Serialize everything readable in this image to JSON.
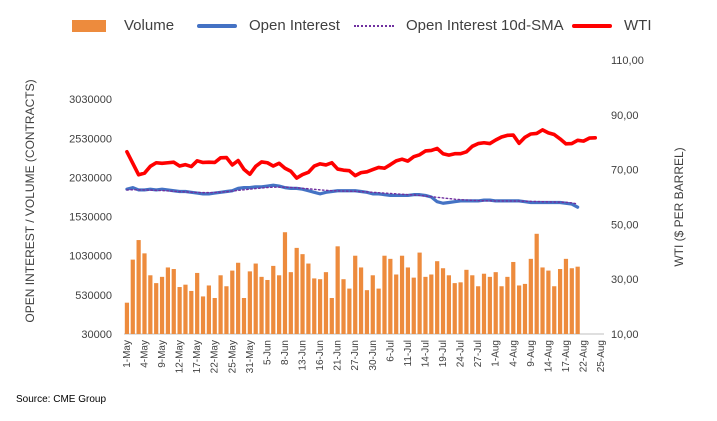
{
  "colors": {
    "volume": "#ED8B3D",
    "open_interest": "#4472C4",
    "sma": "#7030A0",
    "wti": "#FF0000",
    "axis_text": "#404040"
  },
  "legend": {
    "volume": "Volume",
    "open_interest": "Open Interest",
    "sma": "Open Interest 10d-SMA",
    "wti": "WTI"
  },
  "source": "Source: CME Group",
  "chart_data": {
    "type": "bar",
    "title": "",
    "ylabel_left": "OPEN INTEREST / VOLUME (CONTRACTS)",
    "ylabel_right": "WTI ($ PER BARREL)",
    "ylim_left": [
      30000,
      3530000
    ],
    "ylim_right": [
      10,
      110
    ],
    "left_ticks": [
      "30000",
      "530000",
      "1030000",
      "1530000",
      "2030000",
      "2530000",
      "3030000"
    ],
    "right_ticks": [
      "10,00",
      "30,00",
      "50,00",
      "70,00",
      "90,00",
      "110,00"
    ],
    "x_tick_labels": [
      "1-May",
      "4-May",
      "9-May",
      "12-May",
      "17-May",
      "22-May",
      "25-May",
      "31-May",
      "5-Jun",
      "8-Jun",
      "13-Jun",
      "16-Jun",
      "21-Jun",
      "27-Jun",
      "30-Jun",
      "6-Jul",
      "11-Jul",
      "14-Jul",
      "19-Jul",
      "24-Jul",
      "27-Jul",
      "1-Aug",
      "4-Aug",
      "9-Aug",
      "14-Aug",
      "17-Aug",
      "22-Aug",
      "25-Aug"
    ],
    "x_tick_positions": [
      0,
      3,
      6,
      9,
      12,
      15,
      18,
      21,
      24,
      27,
      30,
      33,
      36,
      39,
      42,
      45,
      48,
      51,
      54,
      57,
      60,
      63,
      66,
      69,
      72,
      75,
      78,
      81
    ],
    "slot_count": 82,
    "series": [
      {
        "name": "Volume",
        "kind": "bar",
        "axis": "left",
        "values": [
          430000,
          980000,
          1230000,
          1060000,
          780000,
          680000,
          760000,
          880000,
          860000,
          630000,
          660000,
          580000,
          810000,
          510000,
          650000,
          490000,
          780000,
          640000,
          840000,
          940000,
          490000,
          830000,
          930000,
          760000,
          720000,
          900000,
          780000,
          1330000,
          820000,
          1130000,
          1050000,
          930000,
          740000,
          730000,
          820000,
          490000,
          1150000,
          730000,
          610000,
          1030000,
          880000,
          590000,
          780000,
          610000,
          1030000,
          990000,
          790000,
          1030000,
          880000,
          750000,
          1070000,
          760000,
          790000,
          960000,
          870000,
          780000,
          680000,
          690000,
          850000,
          780000,
          640000,
          800000,
          760000,
          820000,
          640000,
          760000,
          950000,
          650000,
          670000,
          990000,
          1310000,
          880000,
          840000,
          640000,
          860000,
          990000,
          870000,
          890000
        ]
      },
      {
        "name": "Open Interest",
        "kind": "line",
        "axis": "left",
        "values": [
          1880000,
          1900000,
          1870000,
          1870000,
          1880000,
          1870000,
          1880000,
          1870000,
          1860000,
          1850000,
          1850000,
          1840000,
          1830000,
          1820000,
          1820000,
          1830000,
          1840000,
          1850000,
          1860000,
          1890000,
          1900000,
          1900000,
          1910000,
          1910000,
          1920000,
          1930000,
          1920000,
          1900000,
          1890000,
          1890000,
          1880000,
          1860000,
          1840000,
          1820000,
          1840000,
          1850000,
          1860000,
          1860000,
          1860000,
          1860000,
          1850000,
          1840000,
          1820000,
          1820000,
          1810000,
          1800000,
          1800000,
          1800000,
          1800000,
          1810000,
          1810000,
          1800000,
          1780000,
          1720000,
          1700000,
          1710000,
          1720000,
          1730000,
          1730000,
          1730000,
          1730000,
          1740000,
          1740000,
          1730000,
          1730000,
          1730000,
          1730000,
          1730000,
          1720000,
          1710000,
          1710000,
          1710000,
          1710000,
          1710000,
          1710000,
          1700000,
          1690000,
          1650000
        ]
      },
      {
        "name": "Open Interest 10d-SMA",
        "kind": "line",
        "axis": "left",
        "values": [
          1870000,
          1872000,
          1871000,
          1870000,
          1868000,
          1865000,
          1862000,
          1858000,
          1853000,
          1849000,
          1845000,
          1841000,
          1838000,
          1836000,
          1836000,
          1838000,
          1842000,
          1848000,
          1856000,
          1864000,
          1872000,
          1880000,
          1888000,
          1895000,
          1901000,
          1905000,
          1906000,
          1905000,
          1902000,
          1897000,
          1891000,
          1885000,
          1878000,
          1871000,
          1865000,
          1861000,
          1858000,
          1856000,
          1854000,
          1852000,
          1849000,
          1845000,
          1840000,
          1835000,
          1830000,
          1825000,
          1820000,
          1815000,
          1810000,
          1806000,
          1800000,
          1792000,
          1784000,
          1776000,
          1768000,
          1760000,
          1752000,
          1746000,
          1741000,
          1737000,
          1734000,
          1732000,
          1731000,
          1730000,
          1730000,
          1730000,
          1729000,
          1728000,
          1726000,
          1724000,
          1722000,
          1720000,
          1718000,
          1716000,
          1714000,
          1712000,
          1706000,
          1690000
        ]
      },
      {
        "name": "WTI",
        "kind": "line",
        "axis": "right",
        "values": [
          76.5,
          72.3,
          68.1,
          68.7,
          71.2,
          72.5,
          72.3,
          72.5,
          72.7,
          71.3,
          71.8,
          71.1,
          73.2,
          72.6,
          72.7,
          72.6,
          74.3,
          74.4,
          71.7,
          73.3,
          70.1,
          68.3,
          71.2,
          72.8,
          72.5,
          71.3,
          72.3,
          70.5,
          69.4,
          66.9,
          68.2,
          69.0,
          71.3,
          72.1,
          71.7,
          72.5,
          70.2,
          69.8,
          69.6,
          67.8,
          68.9,
          69.2,
          70.0,
          70.8,
          70.5,
          71.8,
          73.2,
          73.8,
          73.1,
          74.7,
          75.4,
          76.8,
          77.0,
          77.7,
          75.8,
          75.3,
          75.8,
          75.8,
          76.5,
          78.5,
          79.5,
          79.8,
          79.5,
          80.8,
          81.9,
          82.5,
          82.6,
          79.6,
          81.8,
          83.0,
          83.2,
          84.5,
          83.4,
          82.8,
          81.2,
          79.4,
          79.5,
          80.7,
          80.4,
          81.5,
          81.6
        ]
      }
    ],
    "legend_position": "top",
    "grid": false
  }
}
